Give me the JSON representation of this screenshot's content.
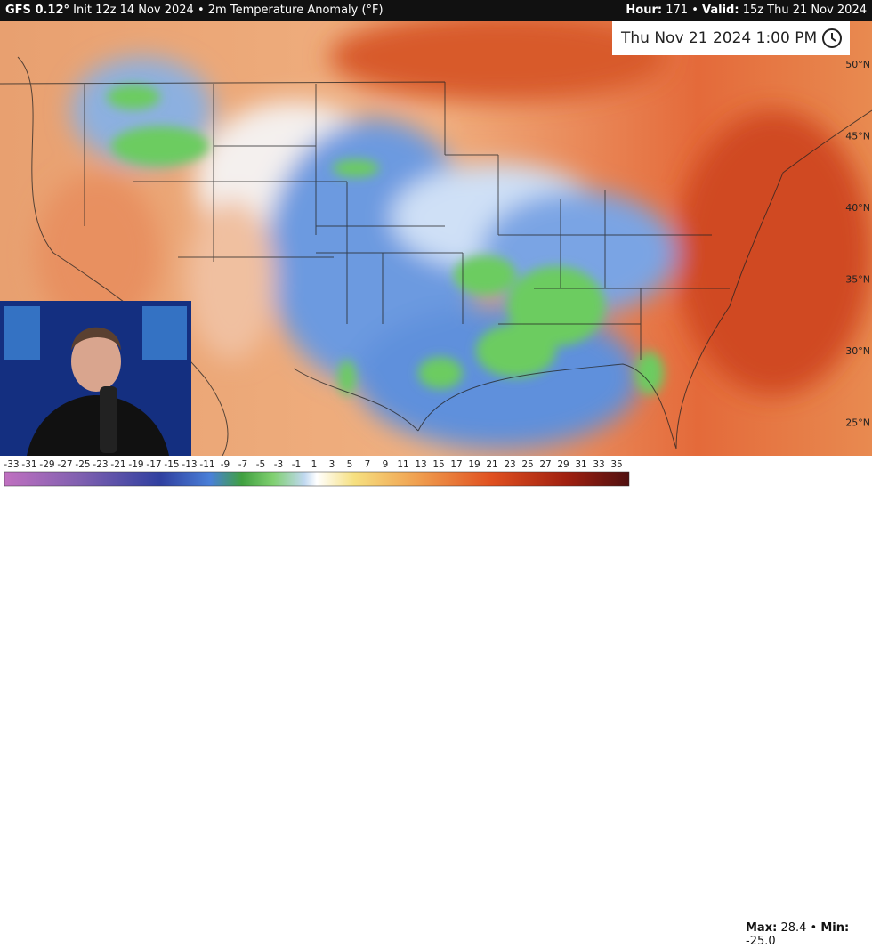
{
  "header": {
    "model": "GFS 0.12°",
    "init": "Init 12z 14 Nov 2024",
    "field": "2m Temperature Anomaly (°F)",
    "hour_label": "Hour:",
    "hour": "171",
    "valid_label": "Valid:",
    "valid": "15z Thu 21 Nov 2024"
  },
  "timestamp": "Thu Nov 21 2024 1:00 PM",
  "latitudes": [
    "50°N",
    "45°N",
    "40°N",
    "35°N",
    "30°N",
    "25°N"
  ],
  "colorbar": {
    "labels": [
      -33,
      -31,
      -29,
      -27,
      -25,
      -23,
      -21,
      -19,
      -17,
      -15,
      -13,
      -11,
      -9,
      -7,
      -5,
      -3,
      -1,
      1,
      3,
      5,
      7,
      9,
      11,
      13,
      15,
      17,
      19,
      21,
      23,
      25,
      27,
      29,
      31,
      33,
      35
    ]
  },
  "stats": {
    "max_label": "Max:",
    "max": "28.4",
    "min_label": "Min:",
    "min": "-25.0"
  }
}
